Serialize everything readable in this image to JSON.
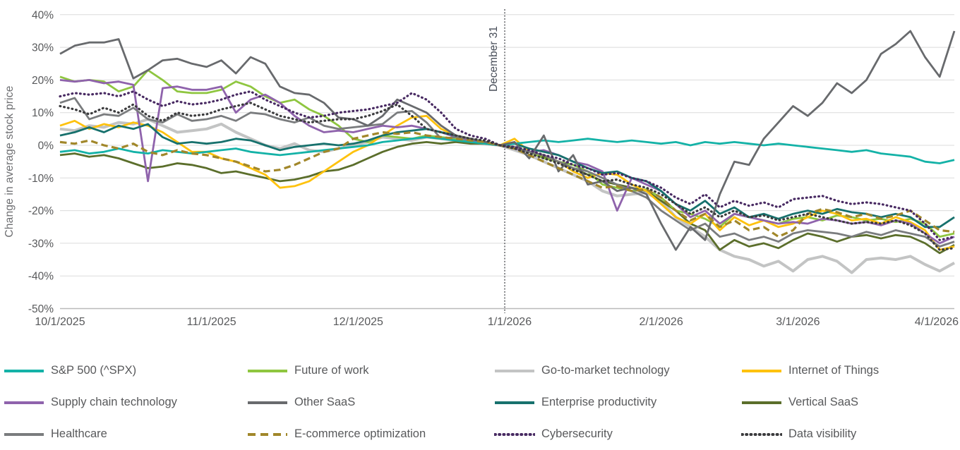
{
  "chart_data": {
    "type": "line",
    "title": "",
    "ylabel": "Change in average stock price",
    "ylim": [
      -50,
      40
    ],
    "y_ticks": [
      40,
      30,
      20,
      10,
      0,
      -10,
      -20,
      -30,
      -40,
      -50
    ],
    "grid": "horizontal",
    "legend_position": "bottom",
    "x_ticks": [
      {
        "label": "10/1/2025",
        "day": 0
      },
      {
        "label": "11/1/2025",
        "day": 31
      },
      {
        "label": "12/1/2025",
        "day": 61
      },
      {
        "label": "1/1/2026",
        "day": 92
      },
      {
        "label": "2/1/2026",
        "day": 123
      },
      {
        "label": "3/1/2026",
        "day": 151
      },
      {
        "label": "4/1/2026",
        "day": 182
      }
    ],
    "annotation": {
      "label": "December 31",
      "day": 91
    },
    "x_unit": "days since 10/1/2025",
    "sample_step_days": 3,
    "colors": {
      "grid": "#dbdbdb",
      "axis_line": "#b9b9b9",
      "axis_text": "#58595b",
      "annotation_text": "#474d58",
      "annotation_line": "#54565a"
    },
    "series": [
      {
        "name": "S&P 500 (^SPX)",
        "key": "sp500",
        "color": "#14b2a7",
        "style": "solid",
        "values": [
          -2,
          -1.5,
          -2.5,
          -2,
          -1,
          -2,
          -2.5,
          -1.5,
          -2,
          -2.5,
          -2,
          -1.5,
          -1,
          -2,
          -2.5,
          -3,
          -2.5,
          -2,
          -1.5,
          -1,
          -0.5,
          0,
          1,
          1.5,
          2,
          2.5,
          2,
          1.5,
          1,
          0.5,
          0,
          0.5,
          1,
          1.5,
          1,
          1.5,
          2,
          1.5,
          1,
          1.5,
          1,
          0.5,
          1,
          0,
          1,
          0.5,
          1,
          0.5,
          0,
          0.5,
          0,
          -0.5,
          -1,
          -1.5,
          -2,
          -1.5,
          -2.5,
          -3,
          -3.5,
          -5,
          -5.5,
          -4.5
        ]
      },
      {
        "name": "Future of work",
        "key": "future_of_work",
        "color": "#8fc640",
        "style": "solid",
        "values": [
          21,
          19.5,
          20,
          19.5,
          16.5,
          18,
          23,
          20,
          16.5,
          16,
          16,
          17,
          19.5,
          18,
          15,
          13,
          14,
          11,
          9,
          6,
          2,
          1,
          3,
          2.5,
          2,
          3,
          2.5,
          2,
          1.5,
          1,
          0,
          -1,
          -2,
          -4,
          -5,
          -6,
          -8,
          -12,
          -13,
          -14,
          -13.5,
          -16,
          -20,
          -21,
          -22.5,
          -25,
          -21,
          -22,
          -23,
          -24,
          -22.5,
          -22,
          -23,
          -21.5,
          -22,
          -23,
          -22.5,
          -23.5,
          -22.5,
          -24,
          -28,
          -27
        ]
      },
      {
        "name": "Go-to-market technology",
        "key": "gtm",
        "color": "#c3c4c4",
        "style": "solid",
        "values": [
          5,
          4.5,
          6,
          5.5,
          7,
          6.5,
          8,
          6,
          4,
          4.5,
          5,
          6.5,
          4,
          2,
          0,
          -1,
          0.5,
          -1.5,
          -2,
          -1,
          0,
          1,
          2.5,
          2,
          1.5,
          2.5,
          2,
          1.5,
          1,
          0.5,
          0,
          -1.5,
          -3,
          -5,
          -7,
          -9,
          -11,
          -14,
          -15.5,
          -15,
          -14.5,
          -17,
          -22,
          -25,
          -28,
          -32,
          -34,
          -35,
          -37,
          -35.5,
          -38.5,
          -35,
          -34,
          -35.5,
          -39,
          -35,
          -34.5,
          -35,
          -34,
          -36.5,
          -38.5,
          -36
        ]
      },
      {
        "name": "Internet of Things",
        "key": "iot",
        "color": "#fec20e",
        "style": "solid",
        "values": [
          6,
          7.5,
          5,
          6.5,
          5.5,
          7,
          6,
          4,
          1,
          -2,
          -2,
          -4,
          -5,
          -7,
          -9,
          -13,
          -12.5,
          -11,
          -8,
          -5,
          -2,
          0,
          3,
          6,
          8.5,
          9,
          5,
          3,
          2,
          1,
          0,
          2,
          -2,
          -3,
          -5,
          -8,
          -10,
          -8.5,
          -9,
          -12,
          -14,
          -18,
          -22,
          -24,
          -21,
          -26,
          -22,
          -24.5,
          -23,
          -25,
          -24,
          -22,
          -20,
          -21,
          -23,
          -22.5,
          -24,
          -22,
          -23.5,
          -26,
          -32,
          -31
        ]
      },
      {
        "name": "Supply chain technology",
        "key": "supply_chain",
        "color": "#8f63ac",
        "style": "solid",
        "values": [
          20,
          19.5,
          20,
          19,
          19.5,
          18.5,
          -11,
          17.5,
          18,
          17,
          17,
          18,
          10,
          14,
          15.5,
          13,
          9,
          6,
          4,
          4.5,
          4,
          5,
          6,
          5.5,
          6,
          5,
          4,
          2.5,
          1.5,
          1,
          0,
          -1,
          -2,
          -1.5,
          -3,
          -5,
          -6,
          -8,
          -20,
          -10,
          -12,
          -14,
          -18,
          -22,
          -20,
          -24,
          -21,
          -22,
          -23,
          -24,
          -23.5,
          -24,
          -22.5,
          -23,
          -24,
          -23.5,
          -24.5,
          -23,
          -24,
          -27,
          -30,
          -28
        ]
      },
      {
        "name": "Other SaaS",
        "key": "other_saas",
        "color": "#686a6d",
        "style": "solid",
        "values": [
          28,
          30.5,
          31.5,
          31.5,
          32.5,
          20.5,
          23,
          26,
          26.5,
          25,
          24,
          26,
          22,
          27,
          25,
          18,
          16,
          15.5,
          13,
          8.5,
          8,
          6,
          9,
          14,
          12,
          10,
          6,
          3,
          2,
          1,
          0,
          1,
          -4,
          3,
          -8,
          -3,
          -12,
          -11,
          -14,
          -13,
          -15,
          -24,
          -32,
          -25,
          -29,
          -15,
          -5,
          -6,
          2,
          7,
          12,
          9,
          13,
          19,
          16,
          20,
          28,
          31,
          35,
          27,
          21,
          35
        ]
      },
      {
        "name": "Enterprise productivity",
        "key": "enterprise_productivity",
        "color": "#17716d",
        "style": "solid",
        "values": [
          3,
          4,
          5.5,
          4,
          6,
          5,
          6.5,
          2.5,
          0.5,
          1,
          0.5,
          1,
          2,
          1.5,
          0,
          -1.5,
          -0.5,
          0,
          0.5,
          0,
          0.5,
          1.5,
          3,
          4,
          4.5,
          5,
          4,
          3,
          2,
          1,
          0,
          0.5,
          -1,
          -2,
          -3,
          -5,
          -7,
          -8.5,
          -8,
          -10,
          -11,
          -14,
          -18,
          -20,
          -17,
          -21,
          -19,
          -22,
          -21,
          -22.5,
          -21,
          -20,
          -21,
          -19.5,
          -20.5,
          -21,
          -22,
          -21,
          -22,
          -25,
          -25,
          -22
        ]
      },
      {
        "name": "Vertical SaaS",
        "key": "vertical_saas",
        "color": "#5b6e2b",
        "style": "solid",
        "values": [
          -3,
          -2.5,
          -3.5,
          -3,
          -4,
          -5.5,
          -7,
          -6.5,
          -5.5,
          -6,
          -7,
          -8.5,
          -8,
          -9,
          -10,
          -11,
          -10.5,
          -9.5,
          -8,
          -7.5,
          -6,
          -4,
          -2,
          -0.5,
          0.5,
          1,
          0.5,
          1,
          0.5,
          0.5,
          0,
          -1,
          -2,
          -3.5,
          -5,
          -7,
          -9,
          -11,
          -12,
          -13,
          -14,
          -17,
          -20,
          -24,
          -26,
          -32,
          -29,
          -31,
          -30,
          -31.5,
          -29,
          -27,
          -28,
          -29.5,
          -28,
          -27.5,
          -28.5,
          -27.5,
          -28,
          -30,
          -33,
          -30.5
        ]
      },
      {
        "name": "Healthcare",
        "key": "healthcare",
        "color": "#7a7c7e",
        "style": "solid",
        "values": [
          13,
          14.5,
          8,
          9.5,
          9,
          11.5,
          8,
          7,
          9.5,
          7.5,
          8,
          9,
          7.5,
          10,
          9.5,
          8,
          7,
          8.5,
          6,
          5,
          5.5,
          6,
          6.5,
          10,
          10.5,
          7,
          2,
          2.5,
          2,
          1,
          0,
          -0.5,
          -2,
          -3,
          -5,
          -7,
          -8,
          -10,
          -12,
          -14,
          -16,
          -20,
          -23,
          -26,
          -24,
          -28,
          -27,
          -29,
          -28,
          -29.5,
          -27,
          -26,
          -26.5,
          -27,
          -28,
          -26.5,
          -27.5,
          -26,
          -27,
          -28,
          -31,
          -29.5
        ]
      },
      {
        "name": "E-commerce optimization",
        "key": "ecommerce_optimization",
        "color": "#a1872a",
        "style": "dashed",
        "values": [
          1,
          0.5,
          1.5,
          0,
          -1,
          0.5,
          -2,
          -3,
          -1.5,
          -2.5,
          -3,
          -4,
          -5,
          -6.5,
          -8,
          -7.5,
          -6,
          -4,
          -2,
          -1,
          2,
          3,
          4,
          3.5,
          4,
          3,
          2.5,
          2,
          1.5,
          1,
          0,
          -1,
          -3,
          -5,
          -7,
          -9,
          -11,
          -13,
          -12.5,
          -14,
          -13.5,
          -16,
          -20,
          -23,
          -21,
          -25,
          -23,
          -26,
          -25,
          -28,
          -26,
          -21,
          -19.5,
          -20.5,
          -22,
          -21,
          -22.5,
          -21.5,
          -20,
          -23,
          -26,
          -26.5
        ]
      },
      {
        "name": "Cybersecurity",
        "key": "cybersecurity",
        "color": "#482a62",
        "style": "dotted",
        "values": [
          15,
          16,
          15.5,
          16,
          15,
          16.5,
          14,
          12,
          13.5,
          12.5,
          13,
          14,
          15.5,
          16.5,
          14,
          12,
          10,
          8.5,
          9,
          10,
          10.5,
          11,
          12,
          13,
          16,
          14,
          10,
          5,
          3,
          2,
          0,
          -0.5,
          -1.5,
          -3,
          -4,
          -6,
          -7,
          -9,
          -8.5,
          -10,
          -11,
          -13,
          -16,
          -18,
          -15,
          -19,
          -17,
          -18.5,
          -17.5,
          -19,
          -16.5,
          -16,
          -15.5,
          -17,
          -18,
          -17.5,
          -18,
          -19,
          -20,
          -24,
          -29,
          -28
        ]
      },
      {
        "name": "Data visibility",
        "key": "data_visibility",
        "color": "#3b3b3d",
        "style": "dotted",
        "values": [
          12,
          11,
          9.5,
          11.5,
          10,
          12.5,
          9,
          7.5,
          10,
          9,
          9.5,
          11,
          12,
          13,
          11,
          9,
          8,
          7,
          7.5,
          8,
          8,
          9,
          10.5,
          12.5,
          9,
          5,
          4,
          3,
          2,
          1.5,
          0,
          -1,
          -2.5,
          -4,
          -5.5,
          -7.5,
          -9,
          -11,
          -10.5,
          -12,
          -13,
          -15,
          -18,
          -21,
          -19,
          -22,
          -20,
          -22,
          -21.5,
          -23,
          -22,
          -21,
          -22,
          -23,
          -24,
          -23.5,
          -24,
          -23,
          -24.5,
          -27,
          -32,
          -31.5
        ]
      }
    ]
  }
}
